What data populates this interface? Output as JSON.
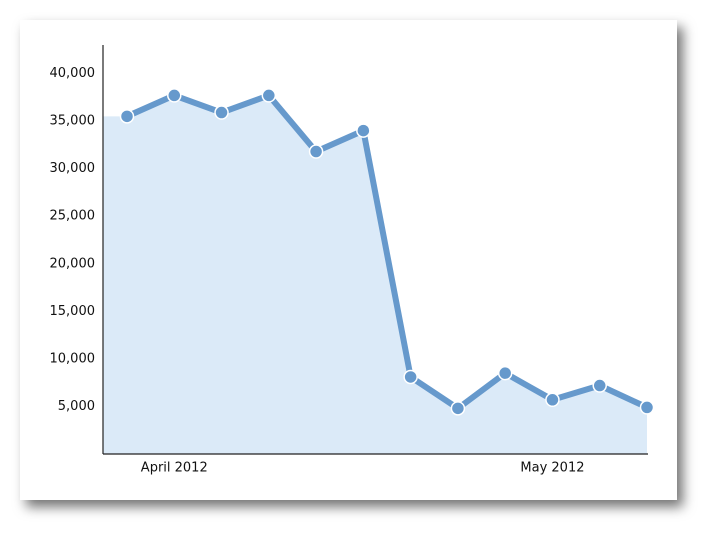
{
  "chart_data": {
    "type": "area-line",
    "categories": [
      null,
      "April 2012",
      null,
      null,
      null,
      null,
      null,
      null,
      null,
      "May 2012",
      null,
      null
    ],
    "values": [
      35500,
      37700,
      35900,
      37700,
      31800,
      34000,
      8100,
      4800,
      8500,
      5700,
      7200,
      4900
    ],
    "color": "#6699cc",
    "fill": "#dbeaf8",
    "ylim": [
      0,
      43000
    ],
    "yticks": [
      {
        "value": 5000,
        "label": "5,000"
      },
      {
        "value": 10000,
        "label": "10,000"
      },
      {
        "value": 15000,
        "label": "15,000"
      },
      {
        "value": 20000,
        "label": "20,000"
      },
      {
        "value": 25000,
        "label": "25,000"
      },
      {
        "value": 30000,
        "label": "30,000"
      },
      {
        "value": 35000,
        "label": "35,000"
      },
      {
        "value": 40000,
        "label": "40,000"
      }
    ],
    "grid": false
  }
}
